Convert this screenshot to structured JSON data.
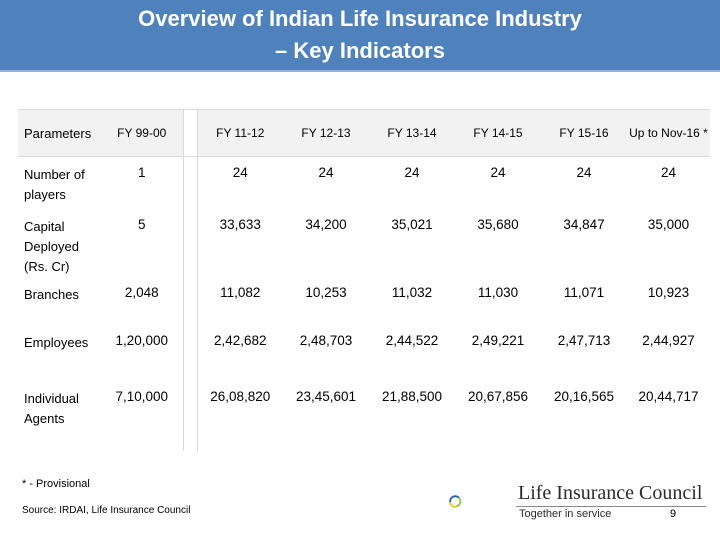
{
  "slide": {
    "title_line1": "Overview of Indian Life Insurance Industry",
    "title_line2": "– Key Indicators"
  },
  "table": {
    "headers": [
      "Parameters",
      "FY 99-00",
      "FY 11-12",
      "FY 12-13",
      "FY 13-14",
      "FY 14-15",
      "FY 15-16",
      "Up to Nov-16 *"
    ],
    "rows": [
      {
        "label": "Number of players",
        "values": [
          "1",
          "24",
          "24",
          "24",
          "24",
          "24",
          "24"
        ]
      },
      {
        "label": "Capital Deployed (Rs. Cr)",
        "values": [
          "5",
          "33,633",
          "34,200",
          "35,021",
          "35,680",
          "34,847",
          "35,000"
        ]
      },
      {
        "label": "Branches",
        "values": [
          "2,048",
          "11,082",
          "10,253",
          "11,032",
          "11,030",
          "11,071",
          "10,923"
        ]
      },
      {
        "label": "Employees",
        "values": [
          "1,20,000",
          "2,42,682",
          "2,48,703",
          "2,44,522",
          "2,49,221",
          "2,47,713",
          "2,44,927"
        ]
      },
      {
        "label": "Individual Agents",
        "values": [
          "7,10,000",
          "26,08,820",
          "23,45,601",
          "21,88,500",
          "20,67,856",
          "20,16,565",
          "20,44,717"
        ]
      }
    ]
  },
  "footer": {
    "footnote": "* - Provisional",
    "source": "Source: IRDAI, Life Insurance Council",
    "logo_name": "Life Insurance Council",
    "logo_tagline": "Together in service",
    "page_number": "9"
  },
  "colors": {
    "header_bg": "#4f81bd",
    "logo_blue": "#1f5fa8",
    "logo_green": "#8dc63f",
    "logo_yellow": "#f2c200"
  }
}
